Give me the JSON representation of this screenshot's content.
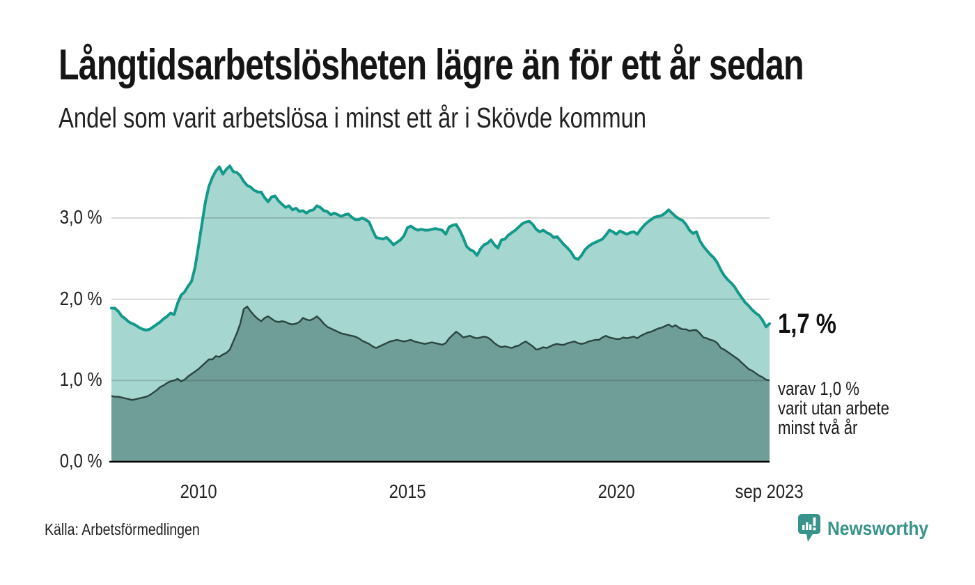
{
  "header": {
    "title": "Långtidsarbetslösheten lägre än för ett år sedan",
    "subtitle": "Andel som varit arbetslösa i minst ett år i Skövde kommun"
  },
  "annotations": {
    "latest_total_label": "1,7 %",
    "detail_line1": "varav 1,0 %",
    "detail_line2": "varit utan arbete",
    "detail_line3": "minst två år"
  },
  "footer": {
    "source": "Källa: Arbetsförmedlingen",
    "logo_text": "Newsworthy"
  },
  "colors": {
    "accent_teal": "#12998a",
    "light_fill": "#a5d6cf",
    "dark_fill": "#6f9d97",
    "dark_line": "#2b4440",
    "grid": "rgba(0,0,0,0.15)",
    "axis_line": "#000000",
    "logo_teal": "#38938a",
    "icon_glyph": "#ffffff"
  },
  "chart_data": {
    "type": "area",
    "title": "Långtidsarbetslösheten lägre än för ett år sedan",
    "subtitle": "Andel som varit arbetslösa i minst ett år i Skövde kommun",
    "unit": "%",
    "interval": "monthly",
    "start": "2007-12",
    "end": "2023-09",
    "xlabel": "",
    "ylabel": "",
    "ylim": [
      0,
      3.64
    ],
    "grid": "horizontal",
    "legend_position": "none",
    "yticks": [
      {
        "label": "0,0 %",
        "value": 0.0
      },
      {
        "label": "1,0 %",
        "value": 1.0
      },
      {
        "label": "2,0 %",
        "value": 2.0
      },
      {
        "label": "3,0 %",
        "value": 3.0
      }
    ],
    "xticks": [
      {
        "label": "2010",
        "month_index": 25
      },
      {
        "label": "2015",
        "month_index": 85
      },
      {
        "label": "2020",
        "month_index": 145
      },
      {
        "label": "sep 2023",
        "month_index": 189
      }
    ],
    "series": [
      {
        "name": "Arbetslösa minst ett år",
        "style": "light_area_teal_line",
        "last_value": 1.7,
        "values": [
          1.89,
          1.89,
          1.85,
          1.79,
          1.76,
          1.72,
          1.7,
          1.68,
          1.65,
          1.63,
          1.62,
          1.63,
          1.66,
          1.69,
          1.72,
          1.76,
          1.79,
          1.83,
          1.81,
          1.95,
          2.05,
          2.09,
          2.16,
          2.22,
          2.39,
          2.65,
          2.93,
          3.2,
          3.39,
          3.5,
          3.58,
          3.63,
          3.54,
          3.6,
          3.64,
          3.57,
          3.56,
          3.52,
          3.45,
          3.4,
          3.38,
          3.34,
          3.32,
          3.32,
          3.25,
          3.2,
          3.26,
          3.27,
          3.21,
          3.17,
          3.13,
          3.15,
          3.1,
          3.12,
          3.08,
          3.09,
          3.06,
          3.09,
          3.1,
          3.15,
          3.13,
          3.09,
          3.08,
          3.04,
          3.06,
          3.04,
          3.02,
          3.04,
          3.05,
          3.01,
          2.98,
          2.98,
          3.0,
          2.98,
          2.95,
          2.85,
          2.76,
          2.75,
          2.74,
          2.76,
          2.72,
          2.67,
          2.7,
          2.73,
          2.78,
          2.88,
          2.9,
          2.87,
          2.85,
          2.86,
          2.85,
          2.85,
          2.86,
          2.87,
          2.86,
          2.85,
          2.8,
          2.89,
          2.91,
          2.92,
          2.85,
          2.76,
          2.65,
          2.61,
          2.59,
          2.54,
          2.62,
          2.67,
          2.69,
          2.73,
          2.67,
          2.63,
          2.73,
          2.74,
          2.79,
          2.82,
          2.85,
          2.89,
          2.93,
          2.95,
          2.96,
          2.92,
          2.86,
          2.83,
          2.85,
          2.82,
          2.8,
          2.76,
          2.77,
          2.72,
          2.67,
          2.63,
          2.58,
          2.51,
          2.49,
          2.54,
          2.61,
          2.65,
          2.68,
          2.7,
          2.72,
          2.74,
          2.79,
          2.85,
          2.83,
          2.8,
          2.84,
          2.82,
          2.8,
          2.82,
          2.83,
          2.8,
          2.86,
          2.91,
          2.95,
          2.98,
          3.01,
          3.02,
          3.03,
          3.06,
          3.1,
          3.06,
          3.02,
          2.99,
          2.97,
          2.92,
          2.85,
          2.81,
          2.83,
          2.72,
          2.65,
          2.6,
          2.55,
          2.51,
          2.45,
          2.36,
          2.29,
          2.24,
          2.2,
          2.15,
          2.08,
          2.02,
          1.96,
          1.92,
          1.87,
          1.83,
          1.8,
          1.74,
          1.66,
          1.7
        ]
      },
      {
        "name": "Arbetslösa minst två år",
        "style": "dark_area_dark_line",
        "last_value": 1.0,
        "values": [
          0.81,
          0.8,
          0.8,
          0.79,
          0.78,
          0.77,
          0.76,
          0.77,
          0.78,
          0.79,
          0.8,
          0.82,
          0.85,
          0.88,
          0.92,
          0.94,
          0.97,
          0.99,
          1.0,
          1.02,
          0.99,
          1.01,
          1.05,
          1.08,
          1.11,
          1.14,
          1.18,
          1.22,
          1.26,
          1.26,
          1.3,
          1.29,
          1.32,
          1.34,
          1.38,
          1.48,
          1.58,
          1.7,
          1.88,
          1.91,
          1.85,
          1.8,
          1.76,
          1.73,
          1.77,
          1.79,
          1.76,
          1.73,
          1.72,
          1.73,
          1.72,
          1.7,
          1.69,
          1.7,
          1.72,
          1.77,
          1.75,
          1.74,
          1.76,
          1.79,
          1.75,
          1.7,
          1.66,
          1.64,
          1.62,
          1.6,
          1.58,
          1.57,
          1.56,
          1.55,
          1.54,
          1.52,
          1.49,
          1.47,
          1.45,
          1.42,
          1.4,
          1.42,
          1.44,
          1.46,
          1.48,
          1.49,
          1.5,
          1.49,
          1.48,
          1.49,
          1.5,
          1.48,
          1.47,
          1.46,
          1.45,
          1.46,
          1.47,
          1.46,
          1.45,
          1.44,
          1.46,
          1.52,
          1.56,
          1.6,
          1.57,
          1.53,
          1.54,
          1.55,
          1.53,
          1.52,
          1.53,
          1.54,
          1.53,
          1.5,
          1.46,
          1.43,
          1.41,
          1.42,
          1.41,
          1.4,
          1.42,
          1.43,
          1.46,
          1.48,
          1.45,
          1.42,
          1.38,
          1.39,
          1.41,
          1.4,
          1.42,
          1.44,
          1.45,
          1.44,
          1.44,
          1.46,
          1.47,
          1.48,
          1.46,
          1.45,
          1.46,
          1.48,
          1.49,
          1.5,
          1.5,
          1.53,
          1.55,
          1.53,
          1.52,
          1.51,
          1.51,
          1.53,
          1.52,
          1.53,
          1.54,
          1.52,
          1.55,
          1.57,
          1.59,
          1.6,
          1.62,
          1.64,
          1.65,
          1.67,
          1.69,
          1.66,
          1.68,
          1.65,
          1.63,
          1.63,
          1.61,
          1.62,
          1.62,
          1.58,
          1.53,
          1.52,
          1.5,
          1.49,
          1.46,
          1.4,
          1.38,
          1.35,
          1.32,
          1.29,
          1.26,
          1.22,
          1.18,
          1.14,
          1.12,
          1.09,
          1.06,
          1.04,
          1.01,
          1.0
        ]
      }
    ]
  }
}
